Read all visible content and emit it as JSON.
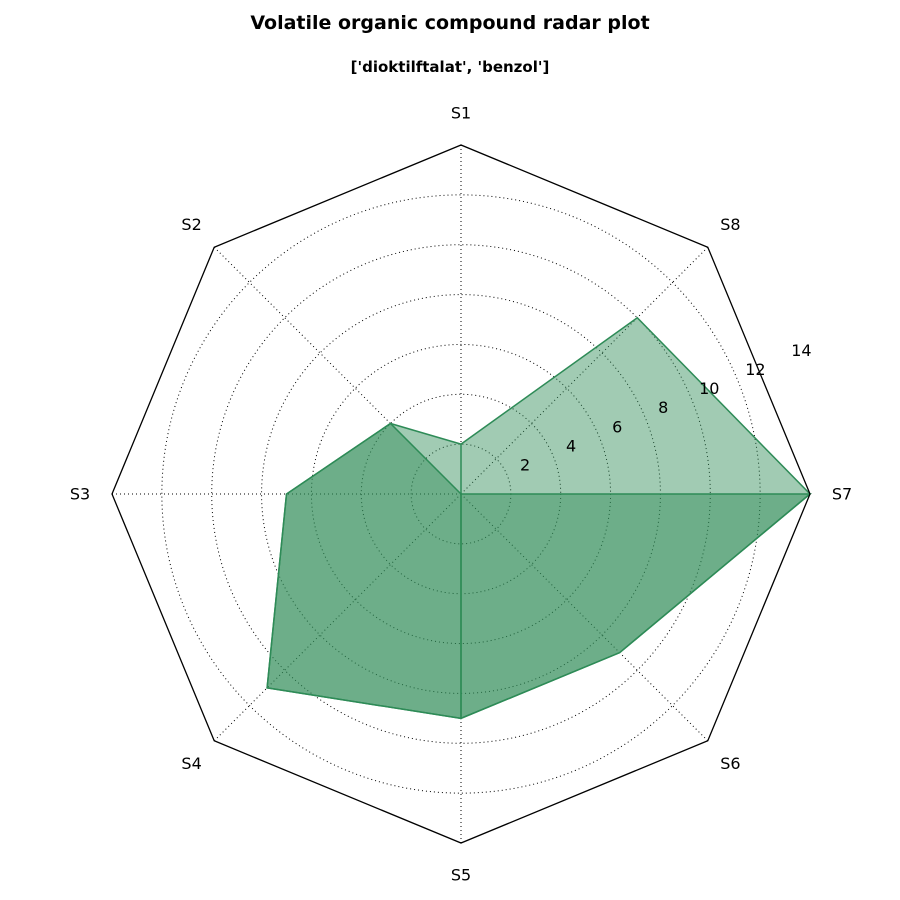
{
  "chart_data": {
    "type": "radar",
    "title": "Volatile organic compound radar plot",
    "subtitle": "['dioktilftalat', 'benzol']",
    "axes": [
      "S1",
      "S2",
      "S3",
      "S4",
      "S5",
      "S6",
      "S7",
      "S8"
    ],
    "rlim": [
      0,
      14
    ],
    "rticks": [
      2,
      4,
      6,
      8,
      10,
      12,
      14
    ],
    "rtick_labels": [
      "2",
      "4",
      "6",
      "8",
      "10",
      "12",
      "14"
    ],
    "grid": true,
    "series": [
      {
        "values": [
          2,
          4,
          7,
          11,
          9,
          9,
          14,
          10
        ],
        "color": "#2e8b57",
        "fill_opacity": 0.45
      },
      {
        "values": [
          2,
          0,
          0,
          0,
          9,
          9,
          14,
          0
        ],
        "color": "#2e8b57",
        "fill_opacity": 0.45
      },
      {
        "values": [
          0,
          4,
          7,
          11,
          9,
          0,
          0,
          0
        ],
        "color": "#2e8b57",
        "fill_opacity": 0.45
      }
    ]
  }
}
